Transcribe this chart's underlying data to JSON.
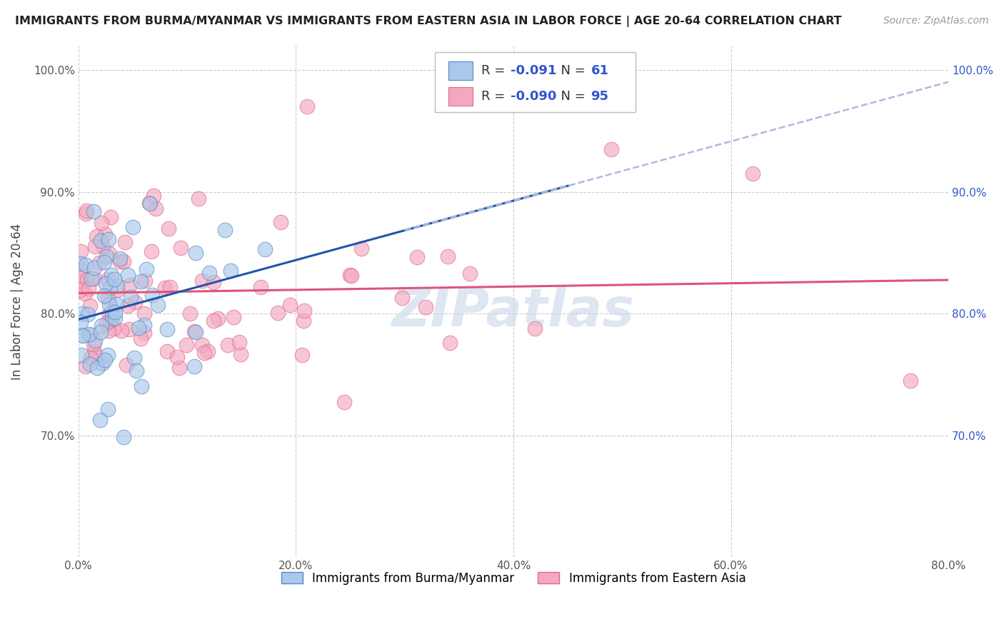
{
  "title": "IMMIGRANTS FROM BURMA/MYANMAR VS IMMIGRANTS FROM EASTERN ASIA IN LABOR FORCE | AGE 20-64 CORRELATION CHART",
  "source": "Source: ZipAtlas.com",
  "ylabel": "In Labor Force | Age 20-64",
  "xlim": [
    0.0,
    0.8
  ],
  "ylim": [
    0.6,
    1.02
  ],
  "xticks": [
    0.0,
    0.2,
    0.4,
    0.6,
    0.8
  ],
  "xticklabels": [
    "0.0%",
    "20.0%",
    "40.0%",
    "60.0%",
    "80.0%"
  ],
  "yticks": [
    0.7,
    0.8,
    0.9,
    1.0
  ],
  "yticklabels_left": [
    "70.0%",
    "80.0%",
    "90.0%",
    "100.0%"
  ],
  "yticklabels_right": [
    "70.0%",
    "80.0%",
    "90.0%",
    "100.0%"
  ],
  "series1_color": "#aac8e8",
  "series1_edge": "#5588cc",
  "series2_color": "#f4a8c0",
  "series2_edge": "#e06888",
  "line1_color": "#2255aa",
  "line2_color": "#dd5577",
  "line1_dash_color": "#aabbdd",
  "watermark": "ZIPatlas",
  "legend_v1": "-0.091",
  "legend_count1": "61",
  "legend_v2": "-0.090",
  "legend_count2": "95",
  "R1": -0.091,
  "N1": 61,
  "R2": -0.09,
  "N2": 95,
  "background_color": "#ffffff",
  "grid_color": "#cccccc",
  "label1": "Immigrants from Burma/Myanmar",
  "label2": "Immigrants from Eastern Asia"
}
